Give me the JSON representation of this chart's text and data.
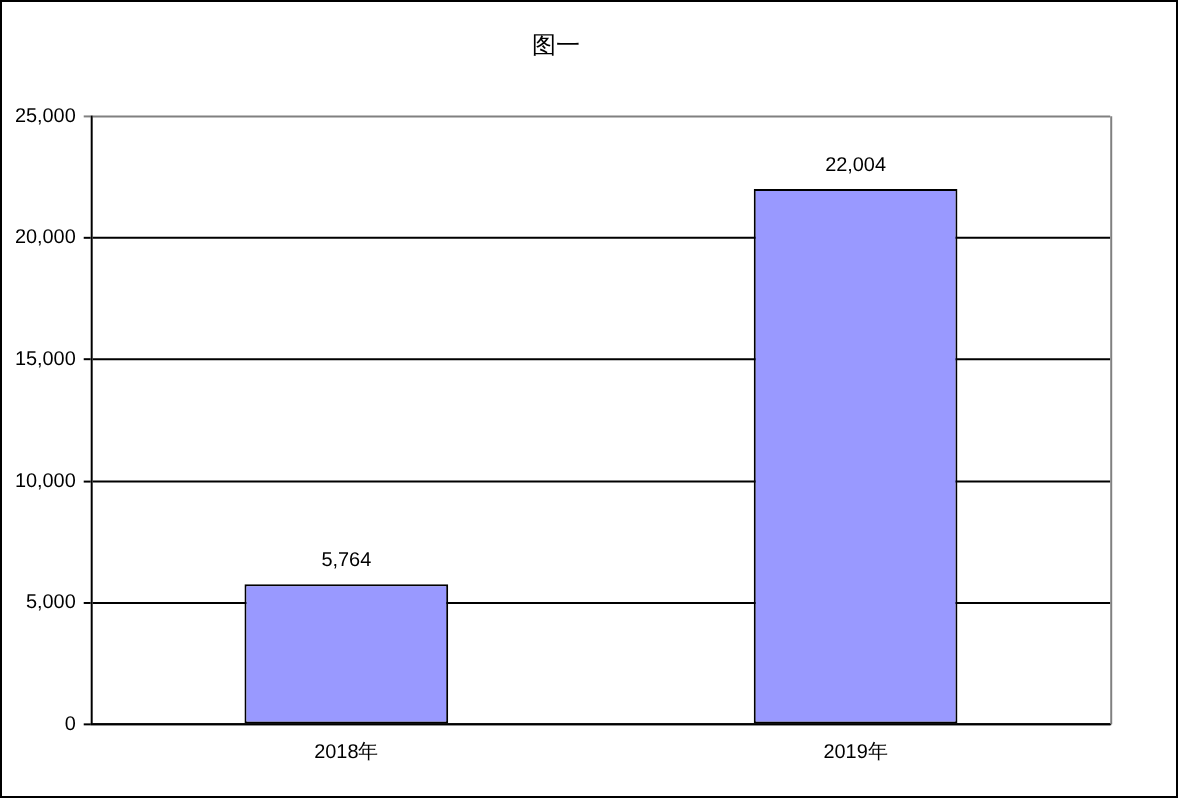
{
  "chart_data": {
    "type": "bar",
    "title": "图一",
    "categories": [
      "2018年",
      "2019年"
    ],
    "values": [
      5764,
      22004
    ],
    "color": "#9999ff",
    "value_labels": [
      "5,764",
      "22,004"
    ],
    "ylim": [
      0,
      25000
    ],
    "yticks": [
      0,
      {
        "value": 5000,
        "label": "5,000"
      },
      {
        "value": 10000,
        "label": "10,000"
      },
      {
        "value": 15000,
        "label": "15,000"
      },
      {
        "value": 20000,
        "label": "20,000"
      },
      {
        "value": 25000,
        "label": "25,000"
      }
    ],
    "grid": "y",
    "legend": false
  }
}
